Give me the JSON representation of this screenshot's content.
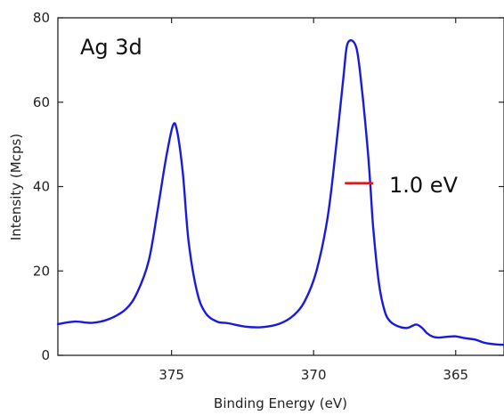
{
  "chart_data": {
    "type": "line",
    "title": "",
    "xlabel": "Binding Energy (eV)",
    "ylabel": "Intensity (Mcps)",
    "xlim": [
      379,
      363.3
    ],
    "x_reversed": true,
    "ylim": [
      0,
      80
    ],
    "xticks": [
      375,
      370,
      365
    ],
    "xtick_labels": [
      "375",
      "370",
      "365"
    ],
    "yticks": [
      0,
      20,
      40,
      60,
      80
    ],
    "ytick_labels": [
      "0",
      "20",
      "40",
      "60",
      "80"
    ],
    "grid": false,
    "legend": "none",
    "colors": {
      "series": "#1a1adf",
      "fwhm": "#e01818"
    },
    "series": [
      {
        "x": [
          379.0,
          378.4,
          377.8,
          377.2,
          376.6,
          376.2,
          375.8,
          375.5,
          375.2,
          374.95,
          374.8,
          374.6,
          374.4,
          374.1,
          373.8,
          373.4,
          373.0,
          372.4,
          371.8,
          371.2,
          370.7,
          370.3,
          369.9,
          369.5,
          369.2,
          368.95,
          368.8,
          368.5,
          368.3,
          368.1,
          368.0,
          367.9,
          367.7,
          367.5,
          367.3,
          367.0,
          366.7,
          366.4,
          366.2,
          366.0,
          365.8,
          365.6,
          365.3,
          365.0,
          364.7,
          364.3,
          364.0,
          363.6,
          363.3
        ],
        "y": [
          7.4,
          8.0,
          7.7,
          8.6,
          11.0,
          15.0,
          22.5,
          34.0,
          46.5,
          54.5,
          53.0,
          43.0,
          27.0,
          15.0,
          10.0,
          8.0,
          7.6,
          6.8,
          6.7,
          7.5,
          9.5,
          13.0,
          20.0,
          33.0,
          50.0,
          66.0,
          74.0,
          73.0,
          63.0,
          49.0,
          40.0,
          30.0,
          17.0,
          10.5,
          8.0,
          6.8,
          6.5,
          7.3,
          6.6,
          5.2,
          4.4,
          4.2,
          4.4,
          4.5,
          4.1,
          3.7,
          3.0,
          2.6,
          2.5
        ]
      }
    ],
    "annotations": [
      {
        "text": "Ag 3d"
      },
      {
        "text": "1.0 eV",
        "fwhm_x": [
          368.9,
          367.9
        ],
        "fwhm_y": 40.8
      }
    ]
  }
}
